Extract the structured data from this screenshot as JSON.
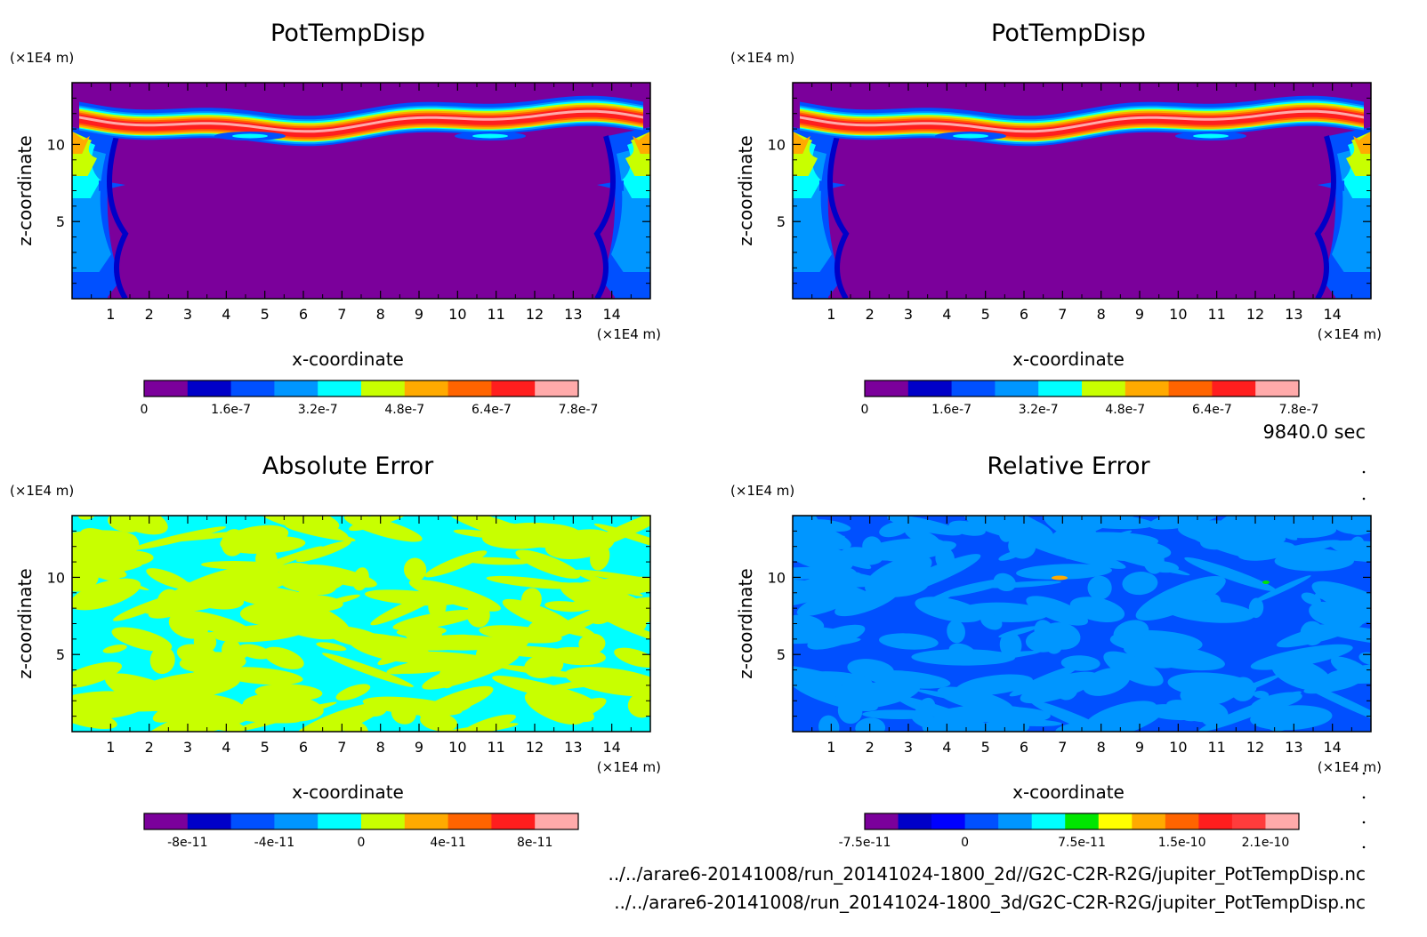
{
  "time_label": "9840.0 sec",
  "footer": {
    "line1": "../../arare6-20141008/run_20141024-1800_2d//G2C-C2R-R2G/jupiter_PotTempDisp.nc",
    "line2": "../../arare6-20141008/run_20141024-1800_3d/G2C-C2R-R2G/jupiter_PotTempDisp.nc"
  },
  "colors": {
    "rainbow": [
      "#7b009b",
      "#0000c8",
      "#0050ff",
      "#0096ff",
      "#00ffff",
      "#c8ff00",
      "#ffaa00",
      "#ff6400",
      "#ff1e1e",
      "#ffaaaa"
    ],
    "relative": [
      "#7b009b",
      "#0000c8",
      "#0000ff",
      "#0050ff",
      "#0096ff",
      "#00ffff",
      "#00e600",
      "#ffff00",
      "#ffaa00",
      "#ff6400",
      "#ff1e1e",
      "#ff3c3c",
      "#ffaaaa"
    ]
  },
  "chart_data": [
    {
      "id": "panel-tl",
      "type": "heatmap",
      "title": "PotTempDisp",
      "xlabel": "x-coordinate",
      "ylabel": "z-coordinate",
      "x_unit": "(×1E4 m)",
      "y_unit": "(×1E4 m)",
      "xlim": [
        0,
        15
      ],
      "ylim": [
        0,
        14
      ],
      "xticks": [
        "1",
        "2",
        "3",
        "4",
        "5",
        "6",
        "7",
        "8",
        "9",
        "10",
        "11",
        "12",
        "13",
        "14"
      ],
      "yticks": [
        "5",
        "10"
      ],
      "pattern": "plume",
      "colorbar": {
        "levels": 10,
        "labels": [
          {
            "text": "0",
            "at": 0
          },
          {
            "text": "1.6e-7",
            "at": 2
          },
          {
            "text": "3.2e-7",
            "at": 4
          },
          {
            "text": "4.8e-7",
            "at": 6
          },
          {
            "text": "6.4e-7",
            "at": 8
          },
          {
            "text": "7.8e-7",
            "at": 10
          }
        ]
      }
    },
    {
      "id": "panel-tr",
      "type": "heatmap",
      "title": "PotTempDisp",
      "xlabel": "x-coordinate",
      "ylabel": "z-coordinate",
      "x_unit": "(×1E4 m)",
      "y_unit": "(×1E4 m)",
      "xlim": [
        0,
        15
      ],
      "ylim": [
        0,
        14
      ],
      "xticks": [
        "1",
        "2",
        "3",
        "4",
        "5",
        "6",
        "7",
        "8",
        "9",
        "10",
        "11",
        "12",
        "13",
        "14"
      ],
      "yticks": [
        "5",
        "10"
      ],
      "pattern": "plume",
      "colorbar": {
        "levels": 10,
        "labels": [
          {
            "text": "0",
            "at": 0
          },
          {
            "text": "1.6e-7",
            "at": 2
          },
          {
            "text": "3.2e-7",
            "at": 4
          },
          {
            "text": "4.8e-7",
            "at": 6
          },
          {
            "text": "6.4e-7",
            "at": 8
          },
          {
            "text": "7.8e-7",
            "at": 10
          }
        ]
      }
    },
    {
      "id": "panel-bl",
      "type": "heatmap",
      "title": "Absolute Error",
      "xlabel": "x-coordinate",
      "ylabel": "z-coordinate",
      "x_unit": "(×1E4 m)",
      "y_unit": "(×1E4 m)",
      "xlim": [
        0,
        15
      ],
      "ylim": [
        0,
        14
      ],
      "xticks": [
        "1",
        "2",
        "3",
        "4",
        "5",
        "6",
        "7",
        "8",
        "9",
        "10",
        "11",
        "12",
        "13",
        "14"
      ],
      "yticks": [
        "5",
        "10"
      ],
      "pattern": "abs",
      "colorbar": {
        "levels": 10,
        "labels": [
          {
            "text": "-8e-11",
            "at": 1
          },
          {
            "text": "-4e-11",
            "at": 3
          },
          {
            "text": "0",
            "at": 5
          },
          {
            "text": "4e-11",
            "at": 7
          },
          {
            "text": "8e-11",
            "at": 9
          }
        ]
      }
    },
    {
      "id": "panel-br",
      "type": "heatmap",
      "title": "Relative Error",
      "xlabel": "x-coordinate",
      "ylabel": "z-coordinate",
      "x_unit": "(×1E4 m)",
      "y_unit": "(×1E4 m)",
      "xlim": [
        0,
        15
      ],
      "ylim": [
        0,
        14
      ],
      "xticks": [
        "1",
        "2",
        "3",
        "4",
        "5",
        "6",
        "7",
        "8",
        "9",
        "10",
        "11",
        "12",
        "13",
        "14"
      ],
      "yticks": [
        "5",
        "10"
      ],
      "pattern": "rel",
      "colorbar": {
        "levels": 13,
        "palette": "relative",
        "labels": [
          {
            "text": "-7.5e-11",
            "at": 0
          },
          {
            "text": "0",
            "at": 3
          },
          {
            "text": "7.5e-11",
            "at": 6.5
          },
          {
            "text": "1.5e-10",
            "at": 9.5
          },
          {
            "text": "2.1e-10",
            "at": 12
          }
        ]
      }
    }
  ]
}
